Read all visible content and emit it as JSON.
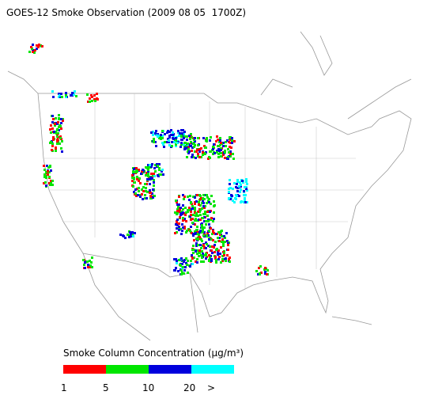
{
  "title": "GOES-12 Smoke Observation (2009 08 05  1700Z)",
  "legend": {
    "title": "Smoke Column Concentration (μg/m³)",
    "colors": [
      "#ff0000",
      "#00e600",
      "#0000dd",
      "#00ffff"
    ],
    "labels": [
      "1",
      "5",
      "10",
      "20",
      ">"
    ]
  }
}
